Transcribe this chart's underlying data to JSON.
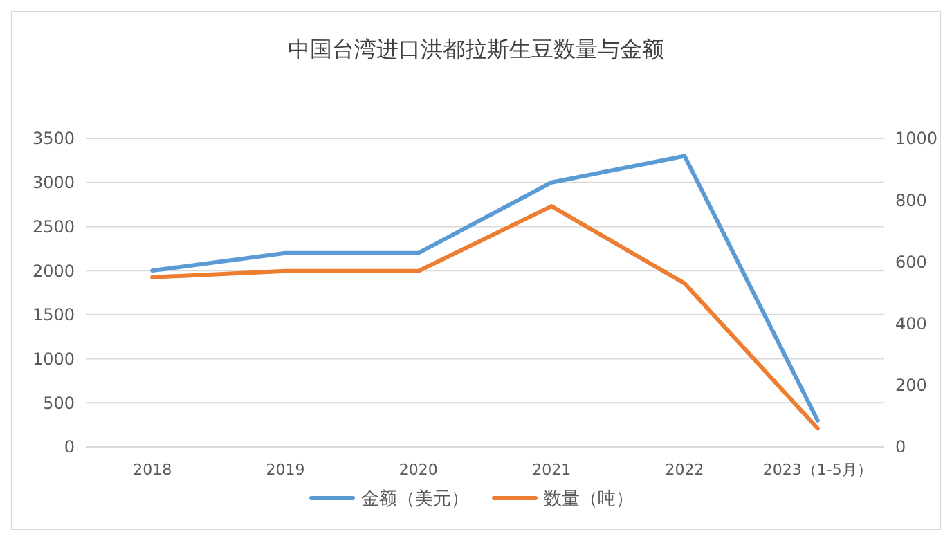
{
  "chart_data": {
    "type": "line",
    "title": "中国台湾进口洪都拉斯生豆数量与金额",
    "categories": [
      "2018",
      "2019",
      "2020",
      "2021",
      "2022",
      "2023（1-5月）"
    ],
    "series": [
      {
        "name": "金额（美元）",
        "color": "#5b9bd5",
        "values": [
          2000,
          2200,
          2200,
          3000,
          3300,
          300
        ]
      },
      {
        "name": "数量（吨）",
        "color": "#ed7d31",
        "values": [
          550,
          570,
          570,
          780,
          530,
          60
        ],
        "axis": "y2"
      }
    ],
    "ylim": [
      0,
      3500
    ],
    "yticks": [
      0,
      500,
      1000,
      1500,
      2000,
      2500,
      3000,
      3500
    ],
    "y2lim": [
      0,
      1000
    ],
    "y2ticks": [
      0,
      200,
      400,
      600,
      800,
      1000
    ],
    "grid": "y",
    "legend": "bottom",
    "marker": "none",
    "line_style": "solid"
  }
}
